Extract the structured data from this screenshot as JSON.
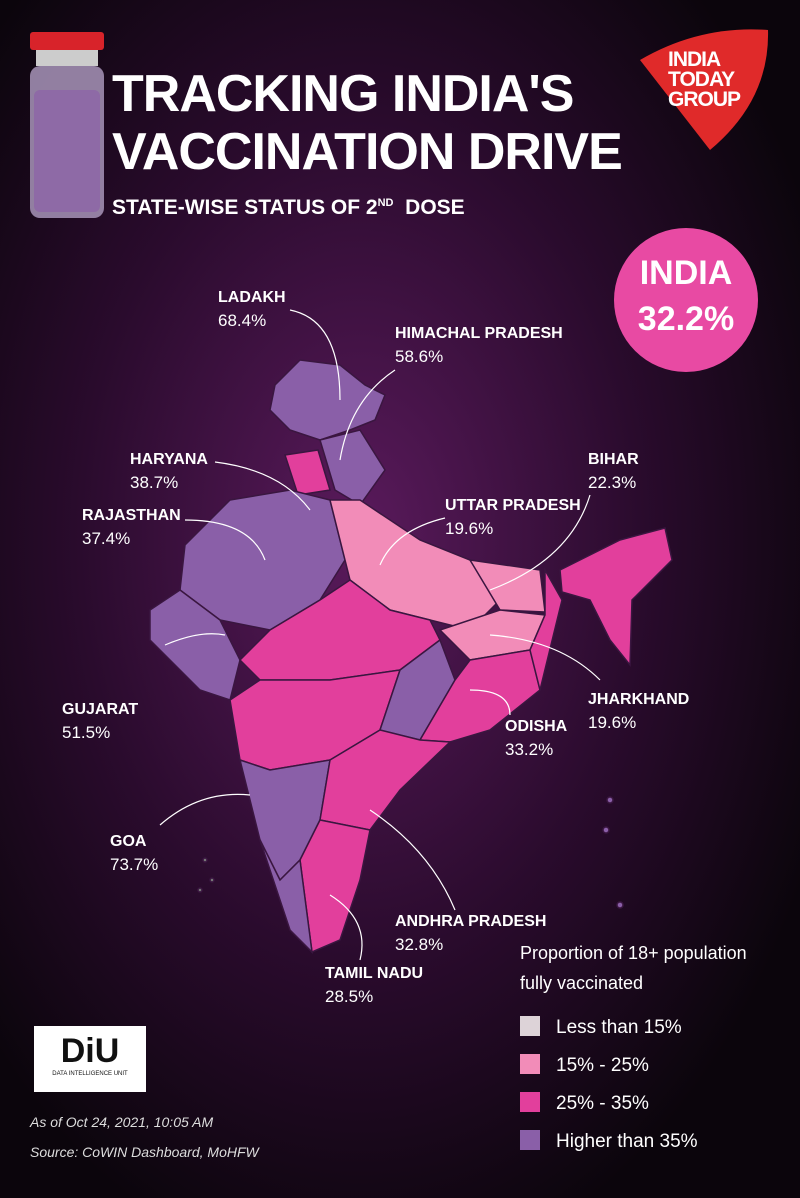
{
  "header": {
    "title_line1": "TRACKING INDIA'S",
    "title_line2": "VACCINATION DRIVE",
    "subtitle": "STATE-WISE STATUS OF 2",
    "subtitle_superscript": "ND",
    "subtitle_end": "DOSE",
    "logo": [
      "INDIA",
      "TODAY",
      "GROUP"
    ]
  },
  "india": {
    "label": "INDIA",
    "value": "32.2%"
  },
  "states": [
    {
      "name": "LADAKH",
      "value": "68.4%"
    },
    {
      "name": "HIMACHAL PRADESH",
      "value": "58.6%"
    },
    {
      "name": "HARYANA",
      "value": "38.7%"
    },
    {
      "name": "BIHAR",
      "value": "22.3%"
    },
    {
      "name": "RAJASTHAN",
      "value": "37.4%"
    },
    {
      "name": "UTTAR PRADESH",
      "value": "19.6%"
    },
    {
      "name": "GUJARAT",
      "value": "51.5%"
    },
    {
      "name": "JHARKHAND",
      "value": "19.6%"
    },
    {
      "name": "ODISHA",
      "value": "33.2%"
    },
    {
      "name": "GOA",
      "value": "73.7%"
    },
    {
      "name": "ANDHRA PRADESH",
      "value": "32.8%"
    },
    {
      "name": "TAMIL NADU",
      "value": "28.5%"
    }
  ],
  "legend": {
    "title_line1": "Proportion of 18+ population",
    "title_line2": "fully vaccinated",
    "items": [
      {
        "label": "Less than 15%",
        "color": "#ddd3d8"
      },
      {
        "label": "15% - 25%",
        "color": "#f28cb8"
      },
      {
        "label": "25% - 35%",
        "color": "#e23f9c"
      },
      {
        "label": "Higher than 35%",
        "color": "#8a5fa8"
      }
    ]
  },
  "footer": {
    "logo": "DiU",
    "logo_caption": "DATA INTELLIGENCE UNIT",
    "date": "As of Oct 24, 2021, 10:05 AM",
    "source": "Source: CoWIN Dashboard, MoHFW"
  }
}
